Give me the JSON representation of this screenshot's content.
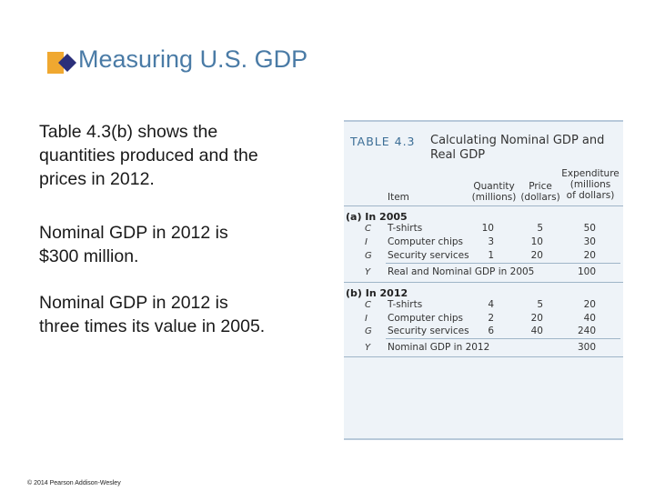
{
  "slide": {
    "title": "Measuring U.S. GDP",
    "footer": "© 2014 Pearson Addison-Wesley"
  },
  "paragraphs": [
    {
      "lines": [
        "Table 4.3(b) shows the",
        "quantities produced and the",
        "prices in 2012."
      ]
    },
    {
      "lines": [
        "Nominal GDP in 2012 is",
        "$300 million."
      ]
    },
    {
      "lines": [
        "Nominal GDP in 2012 is",
        "three times its value in 2005."
      ]
    }
  ],
  "table": {
    "label": "TABLE 4.3",
    "caption": [
      "Calculating Nominal GDP and",
      "Real GDP"
    ],
    "headers": {
      "item": "Item",
      "quantity": [
        "Quantity",
        "(millions)"
      ],
      "price": [
        "Price",
        "(dollars)"
      ],
      "expenditure": [
        "Expenditure",
        "(millions",
        "of dollars)"
      ]
    },
    "section_a": {
      "title": "(a) In 2005",
      "rows": [
        {
          "sym": "C",
          "item": "T-shirts",
          "qty": "10",
          "price": "5",
          "exp": "50"
        },
        {
          "sym": "I",
          "item": "Computer chips",
          "qty": "3",
          "price": "10",
          "exp": "30"
        },
        {
          "sym": "G",
          "item": "Security services",
          "qty": "1",
          "price": "20",
          "exp": "20"
        }
      ],
      "total": {
        "sym": "Y",
        "item": "Real and Nominal GDP in 2005",
        "exp": "100"
      }
    },
    "section_b": {
      "title": "(b) In 2012",
      "rows": [
        {
          "sym": "C",
          "item": "T-shirts",
          "qty": "4",
          "price": "5",
          "exp": "20"
        },
        {
          "sym": "I",
          "item": "Computer chips",
          "qty": "2",
          "price": "20",
          "exp": "40"
        },
        {
          "sym": "G",
          "item": "Security services",
          "qty": "6",
          "price": "40",
          "exp": "240"
        }
      ],
      "total": {
        "sym": "Y",
        "item": "Nominal GDP in 2012",
        "exp": "300"
      }
    }
  }
}
